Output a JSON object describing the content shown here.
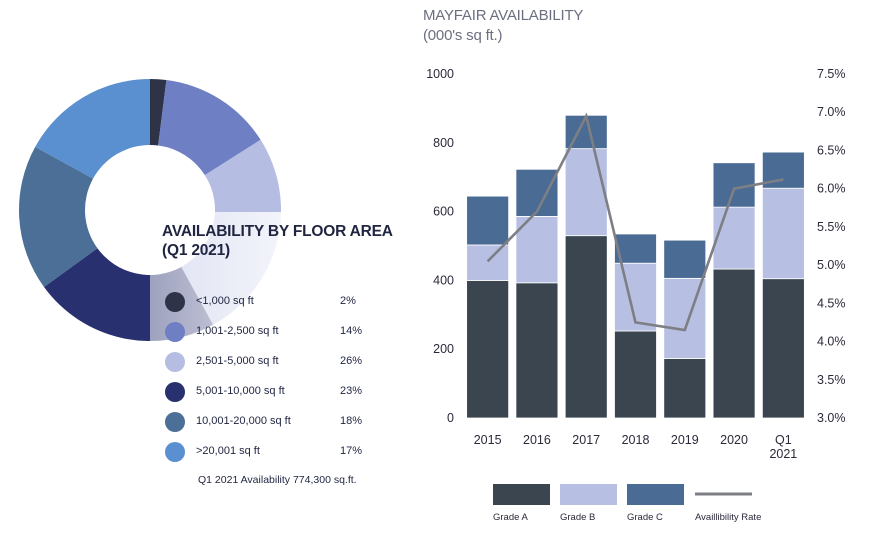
{
  "donut": {
    "title_line1": "AVAILABILITY BY FLOOR AREA",
    "title_line2": "(Q1 2021)",
    "segments": [
      {
        "label": "<1,000 sq ft",
        "pct_label": "2%",
        "value": 2,
        "color": "#2f3348"
      },
      {
        "label": "1,001-2,500 sq ft",
        "pct_label": "14%",
        "value": 14,
        "color": "#6f7fc4"
      },
      {
        "label": "2,501-5,000 sq ft",
        "pct_label": "26%",
        "value": 26,
        "color": "#b5bde2"
      },
      {
        "label": "5,001-10,000 sq ft",
        "pct_label": "23%",
        "value": 23,
        "color": "#28306f"
      },
      {
        "label": "10,001-20,000 sq ft",
        "pct_label": "18%",
        "value": 18,
        "color": "#4b6f96"
      },
      {
        "label": ">20,001 sq ft",
        "pct_label": "17%",
        "value": 17,
        "color": "#5a8fd0"
      }
    ],
    "note": "Q1 2021 Availability 774,300 sq.ft."
  },
  "chart_data": {
    "type": "bar",
    "title": "MAYFAIR AVAILABILITY",
    "subtitle": "(000's sq ft.)",
    "categories": [
      "2015",
      "2016",
      "2017",
      "2018",
      "2019",
      "2020",
      "Q1\n2021"
    ],
    "series": [
      {
        "name": "Grade A",
        "values": [
          400,
          393,
          530,
          253,
          173,
          433,
          405
        ],
        "color": "#3a4550"
      },
      {
        "name": "Grade B",
        "values": [
          103,
          193,
          253,
          197,
          233,
          180,
          263
        ],
        "color": "#b7c0e2"
      },
      {
        "name": "Grade C",
        "values": [
          142,
          137,
          97,
          85,
          111,
          129,
          105
        ],
        "color": "#4a6b93"
      }
    ],
    "line": {
      "name": "Availlibility Rate",
      "values": [
        5.05,
        5.7,
        6.95,
        4.25,
        4.15,
        6.0,
        6.12
      ],
      "color": "#7d7f85"
    },
    "ylim": [
      0,
      1000
    ],
    "y_ticks": [
      "0",
      "200",
      "400",
      "600",
      "800",
      "1000"
    ],
    "y2lim": [
      3.0,
      7.5
    ],
    "y2_ticks": [
      "3.0%",
      "3.5%",
      "4.0%",
      "4.5%",
      "5.0%",
      "5.5%",
      "6.0%",
      "6.5%",
      "7.0%",
      "7.5%"
    ],
    "legend_placement": "bottom"
  }
}
